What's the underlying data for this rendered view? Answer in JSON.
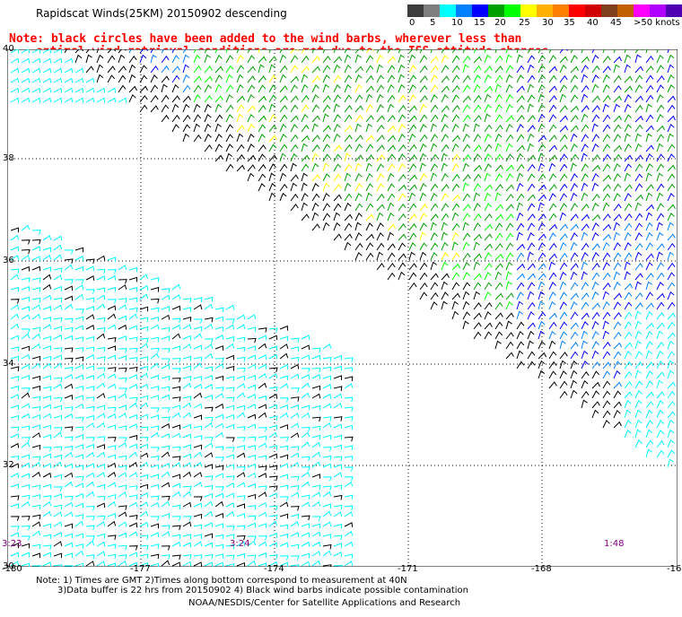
{
  "title": "Rapidscat Winds(25KM) 20150902 descending",
  "note_line1": "Note: black circles have been added to the wind barbs, wherever less than",
  "note_line2": "optimal wind retrieval conditions are met due to the ISS attitude changes.",
  "colorbar": {
    "colors": [
      "#3c3c3c",
      "#7f7f7f",
      "#00ffff",
      "#007fff",
      "#0000ff",
      "#00a000",
      "#00ff00",
      "#ffff00",
      "#ffb000",
      "#ff7f00",
      "#ff0000",
      "#d00000",
      "#7f3f1f",
      "#c06000",
      "#ff00ff",
      "#b000ff",
      "#5000b0"
    ],
    "labels": [
      "0",
      "5",
      "10",
      "15",
      "20",
      "25",
      "30",
      "35",
      "40",
      "45",
      ">50 knots"
    ]
  },
  "map": {
    "lat_labels": [
      "40",
      "38",
      "36",
      "34",
      "32",
      "30"
    ],
    "lon_labels": [
      "-180",
      "-177",
      "-174",
      "-171",
      "-168",
      "-16"
    ],
    "pass_times": [
      "3:23",
      "3:24",
      "1:48"
    ]
  },
  "footnotes": {
    "line1": "Note: 1) Times are GMT 2)Times along bottom correspond to measurement at 40N",
    "line2": "3)Data buffer is 22 hrs from 20150902 4) Black wind barbs indicate possible contamination",
    "line3": "NOAA/NESDIS/Center for Satellite Applications and Research"
  }
}
